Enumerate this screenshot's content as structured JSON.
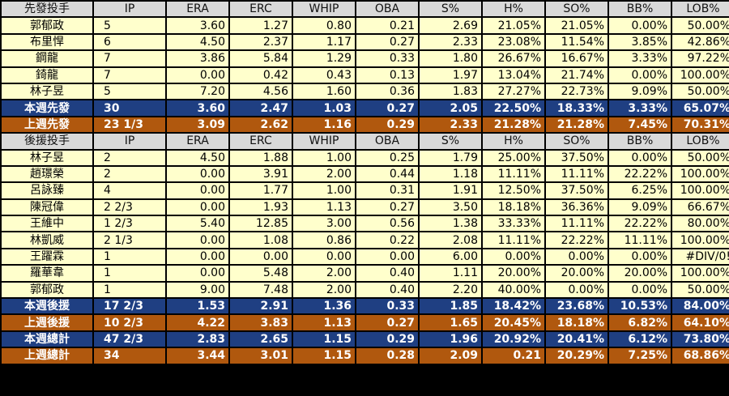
{
  "columns": [
    "IP",
    "ERA",
    "ERC",
    "WHIP",
    "OBA",
    "S%",
    "H%",
    "SO%",
    "BB%",
    "LOB%"
  ],
  "sections": [
    {
      "header_label": "先發投手",
      "rows": [
        {
          "type": "normal",
          "name": "郭郁政",
          "vals": [
            "5",
            "3.60",
            "1.27",
            "0.80",
            "0.21",
            "2.69",
            "21.05%",
            "21.05%",
            "0.00%",
            "50.00%"
          ]
        },
        {
          "type": "normal",
          "name": "布里悍",
          "vals": [
            "6",
            "4.50",
            "2.37",
            "1.17",
            "0.27",
            "2.33",
            "23.08%",
            "11.54%",
            "3.85%",
            "42.86%"
          ]
        },
        {
          "type": "normal",
          "name": "鋼龍",
          "vals": [
            "7",
            "3.86",
            "5.84",
            "1.29",
            "0.33",
            "1.80",
            "26.67%",
            "16.67%",
            "3.33%",
            "97.22%"
          ]
        },
        {
          "type": "normal",
          "name": "錡龍",
          "vals": [
            "7",
            "0.00",
            "0.42",
            "0.43",
            "0.13",
            "1.97",
            "13.04%",
            "21.74%",
            "0.00%",
            "100.00%"
          ]
        },
        {
          "type": "normal",
          "name": "林子昱",
          "vals": [
            "5",
            "7.20",
            "4.56",
            "1.60",
            "0.36",
            "1.83",
            "27.27%",
            "22.73%",
            "9.09%",
            "50.00%"
          ]
        },
        {
          "type": "blue",
          "name": "本週先發",
          "vals": [
            "30",
            "3.60",
            "2.47",
            "1.03",
            "0.27",
            "2.05",
            "22.50%",
            "18.33%",
            "3.33%",
            "65.07%"
          ]
        },
        {
          "type": "orange",
          "name": "上週先發",
          "vals": [
            "23 1/3",
            "3.09",
            "2.62",
            "1.16",
            "0.29",
            "2.33",
            "21.28%",
            "21.28%",
            "7.45%",
            "70.31%"
          ]
        }
      ]
    },
    {
      "header_label": "後援投手",
      "rows": [
        {
          "type": "normal",
          "name": "林子昱",
          "vals": [
            "2",
            "4.50",
            "1.88",
            "1.00",
            "0.25",
            "1.79",
            "25.00%",
            "37.50%",
            "0.00%",
            "50.00%"
          ]
        },
        {
          "type": "normal",
          "name": "趙璟榮",
          "vals": [
            "2",
            "0.00",
            "3.91",
            "2.00",
            "0.44",
            "1.18",
            "11.11%",
            "11.11%",
            "22.22%",
            "100.00%"
          ]
        },
        {
          "type": "normal",
          "name": "呂詠臻",
          "vals": [
            "4",
            "0.00",
            "1.77",
            "1.00",
            "0.31",
            "1.91",
            "12.50%",
            "37.50%",
            "6.25%",
            "100.00%"
          ]
        },
        {
          "type": "normal",
          "name": "陳冠偉",
          "vals": [
            "2 2/3",
            "0.00",
            "1.93",
            "1.13",
            "0.27",
            "3.50",
            "18.18%",
            "36.36%",
            "9.09%",
            "66.67%"
          ]
        },
        {
          "type": "normal",
          "name": "王維中",
          "vals": [
            "1 2/3",
            "5.40",
            "12.85",
            "3.00",
            "0.56",
            "1.38",
            "33.33%",
            "11.11%",
            "22.22%",
            "80.00%"
          ]
        },
        {
          "type": "normal",
          "name": "林凱威",
          "vals": [
            "2 1/3",
            "0.00",
            "1.08",
            "0.86",
            "0.22",
            "2.08",
            "11.11%",
            "22.22%",
            "11.11%",
            "100.00%"
          ]
        },
        {
          "type": "normal",
          "name": "王躍霖",
          "vals": [
            "1",
            "0.00",
            "0.00",
            "0.00",
            "0.00",
            "6.00",
            "0.00%",
            "0.00%",
            "0.00%",
            "#DIV/0!"
          ]
        },
        {
          "type": "normal",
          "name": "羅華韋",
          "vals": [
            "1",
            "0.00",
            "5.48",
            "2.00",
            "0.40",
            "1.11",
            "20.00%",
            "20.00%",
            "20.00%",
            "100.00%"
          ]
        },
        {
          "type": "normal",
          "name": "郭郁政",
          "vals": [
            "1",
            "9.00",
            "7.48",
            "2.00",
            "0.40",
            "2.20",
            "40.00%",
            "0.00%",
            "0.00%",
            "50.00%"
          ]
        },
        {
          "type": "blue",
          "name": "本週後援",
          "vals": [
            "17 2/3",
            "1.53",
            "2.91",
            "1.36",
            "0.33",
            "1.85",
            "18.42%",
            "23.68%",
            "10.53%",
            "84.00%"
          ]
        },
        {
          "type": "orange",
          "name": "上週後援",
          "vals": [
            "10 2/3",
            "4.22",
            "3.83",
            "1.13",
            "0.27",
            "1.65",
            "20.45%",
            "18.18%",
            "6.82%",
            "64.10%"
          ]
        },
        {
          "type": "blue",
          "name": "本週總計",
          "vals": [
            "47 2/3",
            "2.83",
            "2.65",
            "1.15",
            "0.29",
            "1.96",
            "20.92%",
            "20.41%",
            "6.12%",
            "73.80%"
          ]
        },
        {
          "type": "orange",
          "name": "上週總計",
          "vals": [
            "34",
            "3.44",
            "3.01",
            "1.15",
            "0.28",
            "2.09",
            "0.21",
            "20.29%",
            "7.25%",
            "68.86%"
          ]
        }
      ]
    }
  ],
  "colors": {
    "row_bg": "#ffffcc",
    "header_bg": "#d9d9d9",
    "this_week_bg": "#1f3f82",
    "last_week_bg": "#b0580e",
    "grid": "#000000"
  }
}
